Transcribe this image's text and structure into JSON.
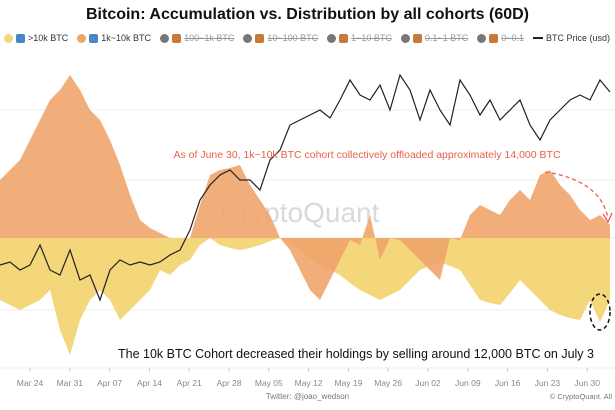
{
  "chart_data": {
    "type": "area",
    "title": "Bitcoin: Accumulation vs. Distribution by all cohorts (60D)",
    "x_ticks": [
      "Mar 24",
      "Mar 31",
      "Apr 07",
      "Apr 14",
      "Apr 21",
      "Apr 28",
      "May 05",
      "May 12",
      "May 19",
      "May 26",
      "Jun 02",
      "Jun 09",
      "Jun 16",
      "Jun 23",
      "Jun 30"
    ],
    "legend": [
      {
        "label": ">10k BTC",
        "color": "#f3d77a",
        "active": true
      },
      {
        "label": "1k~10k BTC",
        "color": "#f0a46b",
        "active": true
      },
      {
        "label": "100~1k BTC",
        "color": "#777777",
        "active": false
      },
      {
        "label": "10~100 BTC",
        "color": "#777777",
        "active": false
      },
      {
        "label": "1~10 BTC",
        "color": "#777777",
        "active": false
      },
      {
        "label": "0.1~1 BTC",
        "color": "#777777",
        "active": false
      },
      {
        "label": "0~0.1",
        "color": "#777777",
        "active": false
      },
      {
        "label": "BTC Price (usd)",
        "color": "#222222",
        "active": true
      }
    ],
    "sample_step_days": 1.75,
    "series": [
      {
        "name": ">10k BTC",
        "color": "#f3d77a",
        "values": [
          -62,
          -67,
          -72,
          -67,
          -62,
          -52,
          -92,
          -117,
          -82,
          -62,
          -52,
          -62,
          -82,
          -72,
          -62,
          -52,
          -32,
          -37,
          -27,
          -22,
          -7,
          0,
          -7,
          -10,
          -12,
          -10,
          -7,
          -3,
          0,
          -5,
          -12,
          -20,
          -27,
          -32,
          -37,
          -45,
          -52,
          -57,
          -62,
          -57,
          -52,
          -42,
          -32,
          -28,
          -24,
          -28,
          -32,
          -47,
          -62,
          -65,
          -67,
          -55,
          -42,
          -52,
          -62,
          -72,
          -77,
          -80,
          -82,
          -62,
          -84,
          -62
        ]
      },
      {
        "name": "1k~10k BTC",
        "color": "#f0a46b",
        "values": [
          58,
          68,
          78,
          98,
          118,
          138,
          148,
          163,
          148,
          128,
          118,
          98,
          73,
          43,
          18,
          10,
          5,
          0,
          0,
          0,
          33,
          63,
          68,
          70,
          73,
          53,
          38,
          23,
          0,
          -12,
          -32,
          -52,
          -62,
          -42,
          -22,
          -2,
          -7,
          23,
          -22,
          0,
          -2,
          -12,
          -22,
          -32,
          -42,
          0,
          -2,
          23,
          33,
          28,
          23,
          38,
          48,
          38,
          63,
          68,
          53,
          43,
          28,
          18,
          23,
          13
        ]
      },
      {
        "name": "BTC Price (usd)",
        "color": "#222222",
        "values": [
          135,
          138,
          130,
          135,
          155,
          130,
          125,
          150,
          120,
          125,
          100,
          130,
          140,
          135,
          138,
          135,
          138,
          145,
          150,
          170,
          200,
          215,
          225,
          230,
          220,
          220,
          210,
          240,
          250,
          275,
          280,
          285,
          290,
          282,
          300,
          320,
          305,
          300,
          315,
          290,
          325,
          310,
          280,
          310,
          290,
          275,
          320,
          305,
          285,
          300,
          280,
          290,
          300,
          275,
          260,
          280,
          290,
          300,
          305,
          300,
          320,
          308
        ]
      }
    ],
    "annotations": {
      "top": "As of June 30, 1k~10k BTC cohort collectively offloaded approximately 14,000 BTC",
      "bottom": "The 10k BTC Cohort decreased their holdings by selling around 12,000 BTC on July 3"
    },
    "watermark": "CryptoQuant"
  },
  "footer": {
    "twitter": "Twitter: @joao_wedson",
    "copyright": "© CryptoQuant. All"
  }
}
